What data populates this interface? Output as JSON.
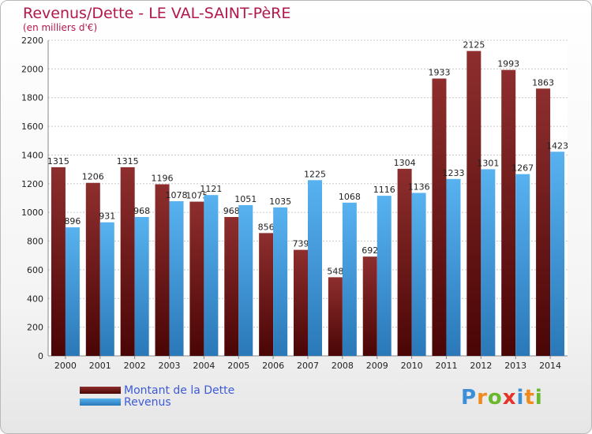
{
  "title": "Revenus/Dette - LE VAL-SAINT-PèRE",
  "subtitle": "(en milliers d'€)",
  "logo": {
    "letters": [
      "P",
      "r",
      "o",
      "x",
      "i",
      "t",
      "i"
    ],
    "colors": [
      "#3a8fd6",
      "#f08a1c",
      "#6ab82e",
      "#e6332a",
      "#3a8fd6",
      "#f08a1c",
      "#6ab82e"
    ]
  },
  "colors": {
    "dette": "#7a1414",
    "revenus": "#4ba6e8"
  },
  "chart_data": {
    "type": "bar",
    "title": "Revenus/Dette - LE VAL-SAINT-PèRE",
    "ylabel": "(en milliers d'€)",
    "xlabel": "",
    "categories": [
      "2000",
      "2001",
      "2002",
      "2003",
      "2004",
      "2005",
      "2006",
      "2007",
      "2008",
      "2009",
      "2010",
      "2011",
      "2012",
      "2013",
      "2014"
    ],
    "yticks": [
      0,
      200,
      400,
      600,
      800,
      1000,
      1200,
      1400,
      1600,
      1800,
      2000,
      2200
    ],
    "ylim": [
      0,
      2200
    ],
    "grid": true,
    "legend_position": "bottom-left",
    "series": [
      {
        "name": "Montant de la Dette",
        "values": [
          1315,
          1206,
          1315,
          1196,
          1075,
          968,
          856,
          739,
          548,
          692,
          1304,
          1933,
          2125,
          1993,
          1863
        ]
      },
      {
        "name": "Revenus",
        "values": [
          896,
          931,
          968,
          1078,
          1121,
          1051,
          1035,
          1225,
          1068,
          1116,
          1136,
          1233,
          1301,
          1267,
          1423
        ]
      }
    ]
  }
}
